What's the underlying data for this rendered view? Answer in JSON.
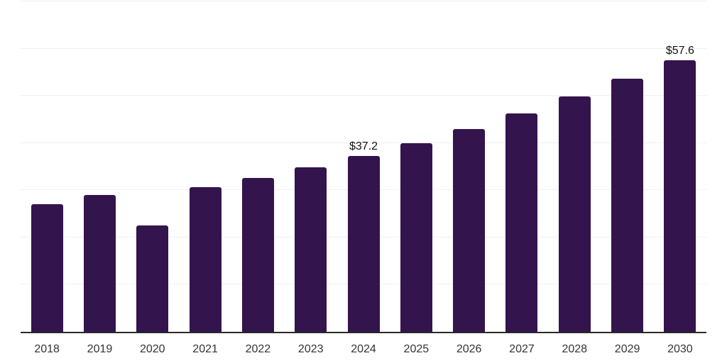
{
  "chart_data": {
    "type": "bar",
    "title": "",
    "xlabel": "",
    "ylabel": "",
    "categories": [
      "2018",
      "2019",
      "2020",
      "2021",
      "2022",
      "2023",
      "2024",
      "2025",
      "2026",
      "2027",
      "2028",
      "2029",
      "2030"
    ],
    "values": [
      27.1,
      29.0,
      22.5,
      30.6,
      32.6,
      34.8,
      37.2,
      40.0,
      43.0,
      46.3,
      49.8,
      53.6,
      57.6
    ],
    "bar_value_labels": [
      "",
      "",
      "",
      "",
      "",
      "",
      "$37.2",
      "",
      "",
      "",
      "",
      "",
      "$57.6"
    ],
    "ylim": [
      0,
      70
    ],
    "gridline_values": [
      10,
      20,
      30,
      40,
      50,
      60,
      70
    ],
    "y_axis_labels_visible": false,
    "legend": "none",
    "colors": {
      "bar_fill": "#34144c",
      "gridline": "#f0f0f0",
      "axis_line": "#2a2a2a",
      "tick_label": "#333333",
      "value_label": "#111111",
      "background": "#ffffff"
    }
  }
}
